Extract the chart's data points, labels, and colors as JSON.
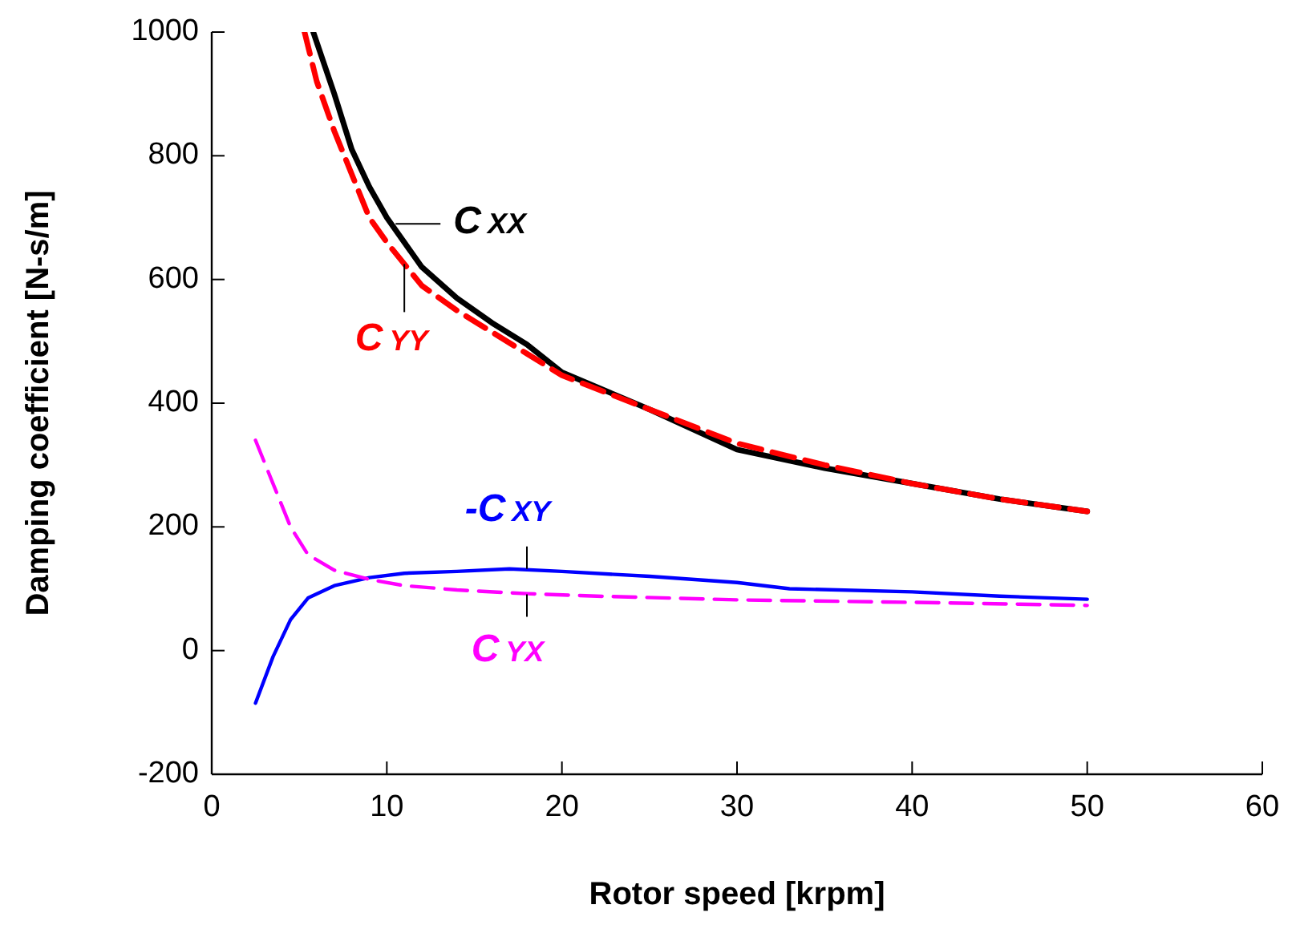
{
  "chart_data": {
    "type": "line",
    "xlabel": "Rotor speed [krpm]",
    "ylabel": "Damping coefficient [N-s/m]",
    "xlim": [
      0,
      60
    ],
    "xticks": [
      0,
      10,
      20,
      30,
      40,
      50,
      60
    ],
    "ylim": [
      -200,
      1000
    ],
    "yticks": [
      -200,
      0,
      200,
      400,
      600,
      800,
      1000
    ],
    "grid": false,
    "annotations": [
      {
        "text": "C$_{XX}$",
        "x": 10.5,
        "y": 690
      },
      {
        "text": "C$_{YY}$",
        "x": 11,
        "y": 625
      },
      {
        "text": "-C$_{XY}$",
        "x": 18,
        "y": 132
      },
      {
        "text": "C$_{YX}$",
        "x": 18,
        "y": 91
      }
    ],
    "marker": "none",
    "series": [
      {
        "color": "#000000",
        "line_style": "solid",
        "x": [
          5.8,
          7,
          8,
          9,
          10,
          12,
          14,
          16,
          18,
          20,
          25,
          30,
          35,
          40,
          45,
          50
        ],
        "values": [
          1000,
          900,
          810,
          750,
          700,
          620,
          570,
          530,
          495,
          450,
          390,
          325,
          295,
          270,
          245,
          225
        ]
      },
      {
        "color": "#ff0000",
        "line_style": "dashed",
        "x": [
          5.3,
          6,
          7,
          8,
          9,
          10,
          12,
          14,
          16,
          18,
          20,
          25,
          30,
          35,
          40,
          45,
          50
        ],
        "values": [
          1000,
          920,
          840,
          770,
          700,
          660,
          590,
          550,
          515,
          480,
          445,
          390,
          335,
          300,
          270,
          245,
          225
        ]
      },
      {
        "color": "#0000ff",
        "line_style": "solid",
        "x": [
          2.5,
          3.5,
          4.5,
          5.5,
          7,
          9,
          11,
          14,
          17,
          20,
          25,
          30,
          33,
          40,
          45,
          50
        ],
        "values": [
          -85,
          -10,
          50,
          85,
          105,
          118,
          125,
          128,
          132,
          128,
          120,
          110,
          100,
          95,
          88,
          83
        ]
      },
      {
        "color": "#ff00ff",
        "line_style": "dashed",
        "x": [
          2.5,
          3.5,
          4.5,
          5.5,
          7,
          9,
          11,
          14,
          18,
          22,
          30,
          40,
          50
        ],
        "values": [
          340,
          270,
          200,
          155,
          130,
          115,
          105,
          98,
          92,
          88,
          82,
          78,
          73
        ]
      }
    ]
  }
}
